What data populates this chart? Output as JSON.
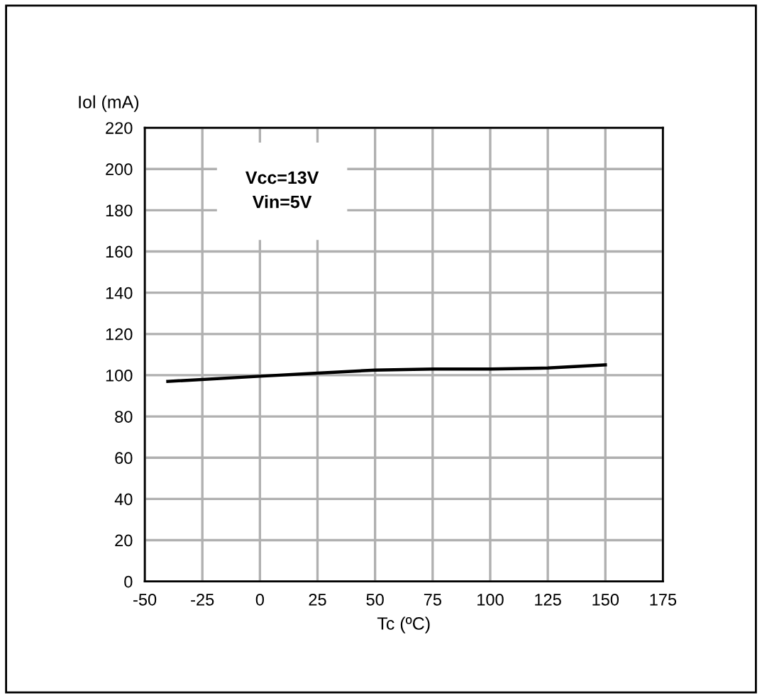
{
  "chart_data": {
    "type": "line",
    "ylabel": "Iol (mA)",
    "xlabel": "Tc (ºC)",
    "annotations": [
      "Vcc=13V\nVin=5V"
    ],
    "x": [
      -40,
      0,
      25,
      50,
      75,
      100,
      125,
      150
    ],
    "series": [
      {
        "color": "#000000",
        "values": [
          97,
          99.5,
          101,
          102.5,
          103,
          103,
          103.5,
          105
        ]
      }
    ],
    "xlim": [
      -50,
      175
    ],
    "xticks": [
      -50,
      -25,
      0,
      25,
      50,
      75,
      100,
      125,
      150,
      175
    ],
    "ylim": [
      0,
      220
    ],
    "yticks": [
      0,
      20,
      40,
      60,
      80,
      100,
      120,
      140,
      160,
      180,
      200,
      220
    ],
    "grid": true,
    "legend": false,
    "marker": "none",
    "line_style": "solid"
  }
}
